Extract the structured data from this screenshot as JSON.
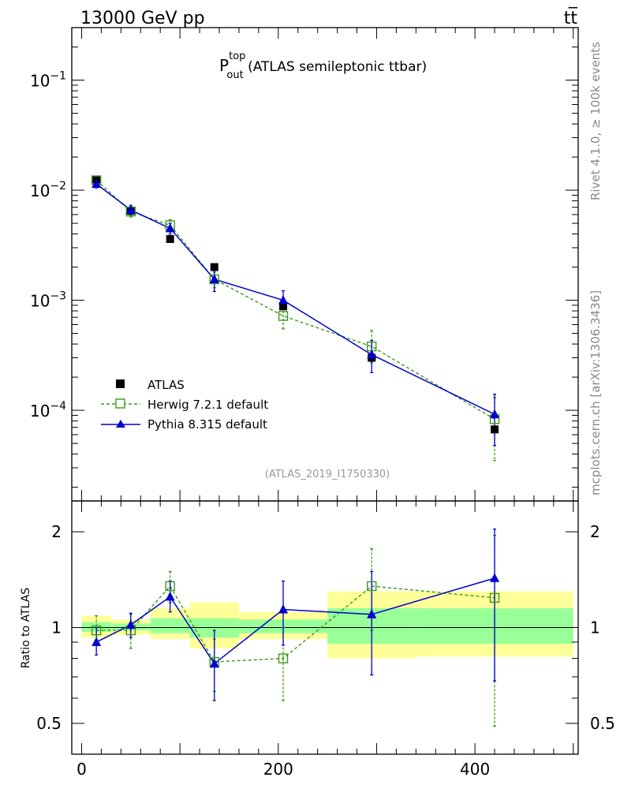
{
  "header": {
    "left": "13000 GeV pp",
    "right": "tt̅"
  },
  "side_labels": {
    "rivet": "Rivet 4.1.0, ≥ 100k events",
    "mcplots": "mcplots.cern.ch [arXiv:1306.3436]"
  },
  "chart_data": [
    {
      "type": "scatter",
      "panel": "main",
      "title_main": "P",
      "title_sup": "top",
      "title_sub": "out",
      "title_rest": " (ATLAS semileptonic ttbar)",
      "watermark": "(ATLAS_2019_I1750330)",
      "yscale": "log",
      "ylim": [
        1.5e-05,
        0.3
      ],
      "xlim": [
        -10,
        505
      ],
      "ytick_labels": [
        {
          "value": 0.1,
          "base": "10",
          "exp": "−1"
        },
        {
          "value": 0.01,
          "base": "10",
          "exp": "−2"
        },
        {
          "value": 0.001,
          "base": "10",
          "exp": "−3"
        },
        {
          "value": 0.0001,
          "base": "10",
          "exp": "−4"
        }
      ],
      "legend_position": "lower-left",
      "legend": [
        "ATLAS",
        "Herwig 7.2.1 default",
        "Pythia 8.315 default"
      ],
      "colors": {
        "ATLAS": "#000000",
        "Herwig": "#3a9a1a",
        "Pythia": "#0000cc",
        "band_outer": "#ffff99",
        "band_inner": "#99ff99"
      },
      "bins": [
        [
          0,
          30
        ],
        [
          30,
          70
        ],
        [
          70,
          110
        ],
        [
          110,
          160
        ],
        [
          160,
          250
        ],
        [
          250,
          340
        ],
        [
          340,
          500
        ]
      ],
      "x": [
        15,
        50,
        90,
        135,
        205,
        295,
        420
      ],
      "series": [
        {
          "name": "ATLAS",
          "values": [
            0.0125,
            0.0065,
            0.0036,
            0.002,
            0.00088,
            0.0003,
            6.7e-05
          ]
        },
        {
          "name": "Herwig 7.2.1 default",
          "values": [
            0.0123,
            0.0064,
            0.0048,
            0.00155,
            0.00072,
            0.00038,
            8.3e-05
          ],
          "err_low": [
            0.0112,
            0.0057,
            0.0043,
            0.0013,
            0.00055,
            0.00027,
            3.5e-05
          ],
          "err_high": [
            0.0134,
            0.0071,
            0.0054,
            0.0018,
            0.00087,
            0.00053,
            0.00013
          ]
        },
        {
          "name": "Pythia 8.315 default",
          "values": [
            0.0114,
            0.0066,
            0.0045,
            0.00155,
            0.001,
            0.00032,
            9.2e-05
          ],
          "err_low": [
            0.0105,
            0.006,
            0.004,
            0.0012,
            0.00085,
            0.00022,
            4.8e-05
          ],
          "err_high": [
            0.0124,
            0.0073,
            0.005,
            0.0019,
            0.00122,
            0.00043,
            0.00014
          ]
        }
      ]
    },
    {
      "type": "scatter",
      "panel": "ratio",
      "ylabel": "Ratio to ATLAS",
      "yscale": "log",
      "ylim": [
        0.4,
        2.5
      ],
      "xlim": [
        -10,
        505
      ],
      "xticks": [
        0,
        200,
        400
      ],
      "yticks": [
        0.5,
        1,
        2
      ],
      "bands": {
        "bins": [
          [
            0,
            30
          ],
          [
            30,
            70
          ],
          [
            70,
            110
          ],
          [
            110,
            160
          ],
          [
            160,
            250
          ],
          [
            250,
            340
          ],
          [
            340,
            500
          ]
        ],
        "outer_low": [
          0.93,
          0.95,
          0.92,
          0.86,
          0.92,
          0.8,
          0.81
        ],
        "outer_high": [
          1.09,
          1.06,
          1.15,
          1.2,
          1.12,
          1.3,
          1.3
        ],
        "inner_low": [
          0.97,
          0.98,
          0.96,
          0.93,
          0.96,
          0.89,
          0.89
        ],
        "inner_high": [
          1.04,
          1.03,
          1.07,
          1.07,
          1.06,
          1.15,
          1.15
        ]
      },
      "x": [
        15,
        50,
        90,
        135,
        205,
        295,
        420
      ],
      "series": [
        {
          "name": "Herwig",
          "values": [
            0.98,
            0.98,
            1.35,
            0.78,
            0.8,
            1.35,
            1.24
          ],
          "err_low": [
            0.88,
            0.86,
            1.2,
            0.63,
            0.59,
            0.98,
            0.49
          ],
          "err_high": [
            1.09,
            1.1,
            1.5,
            0.92,
            1.0,
            1.77,
            1.95
          ]
        },
        {
          "name": "Pythia",
          "values": [
            0.9,
            1.02,
            1.25,
            0.77,
            1.14,
            1.1,
            1.43
          ],
          "err_low": [
            0.82,
            0.93,
            1.12,
            0.59,
            0.88,
            0.71,
            0.68
          ],
          "err_high": [
            1.0,
            1.11,
            1.4,
            0.98,
            1.4,
            1.5,
            2.04
          ]
        }
      ]
    }
  ]
}
